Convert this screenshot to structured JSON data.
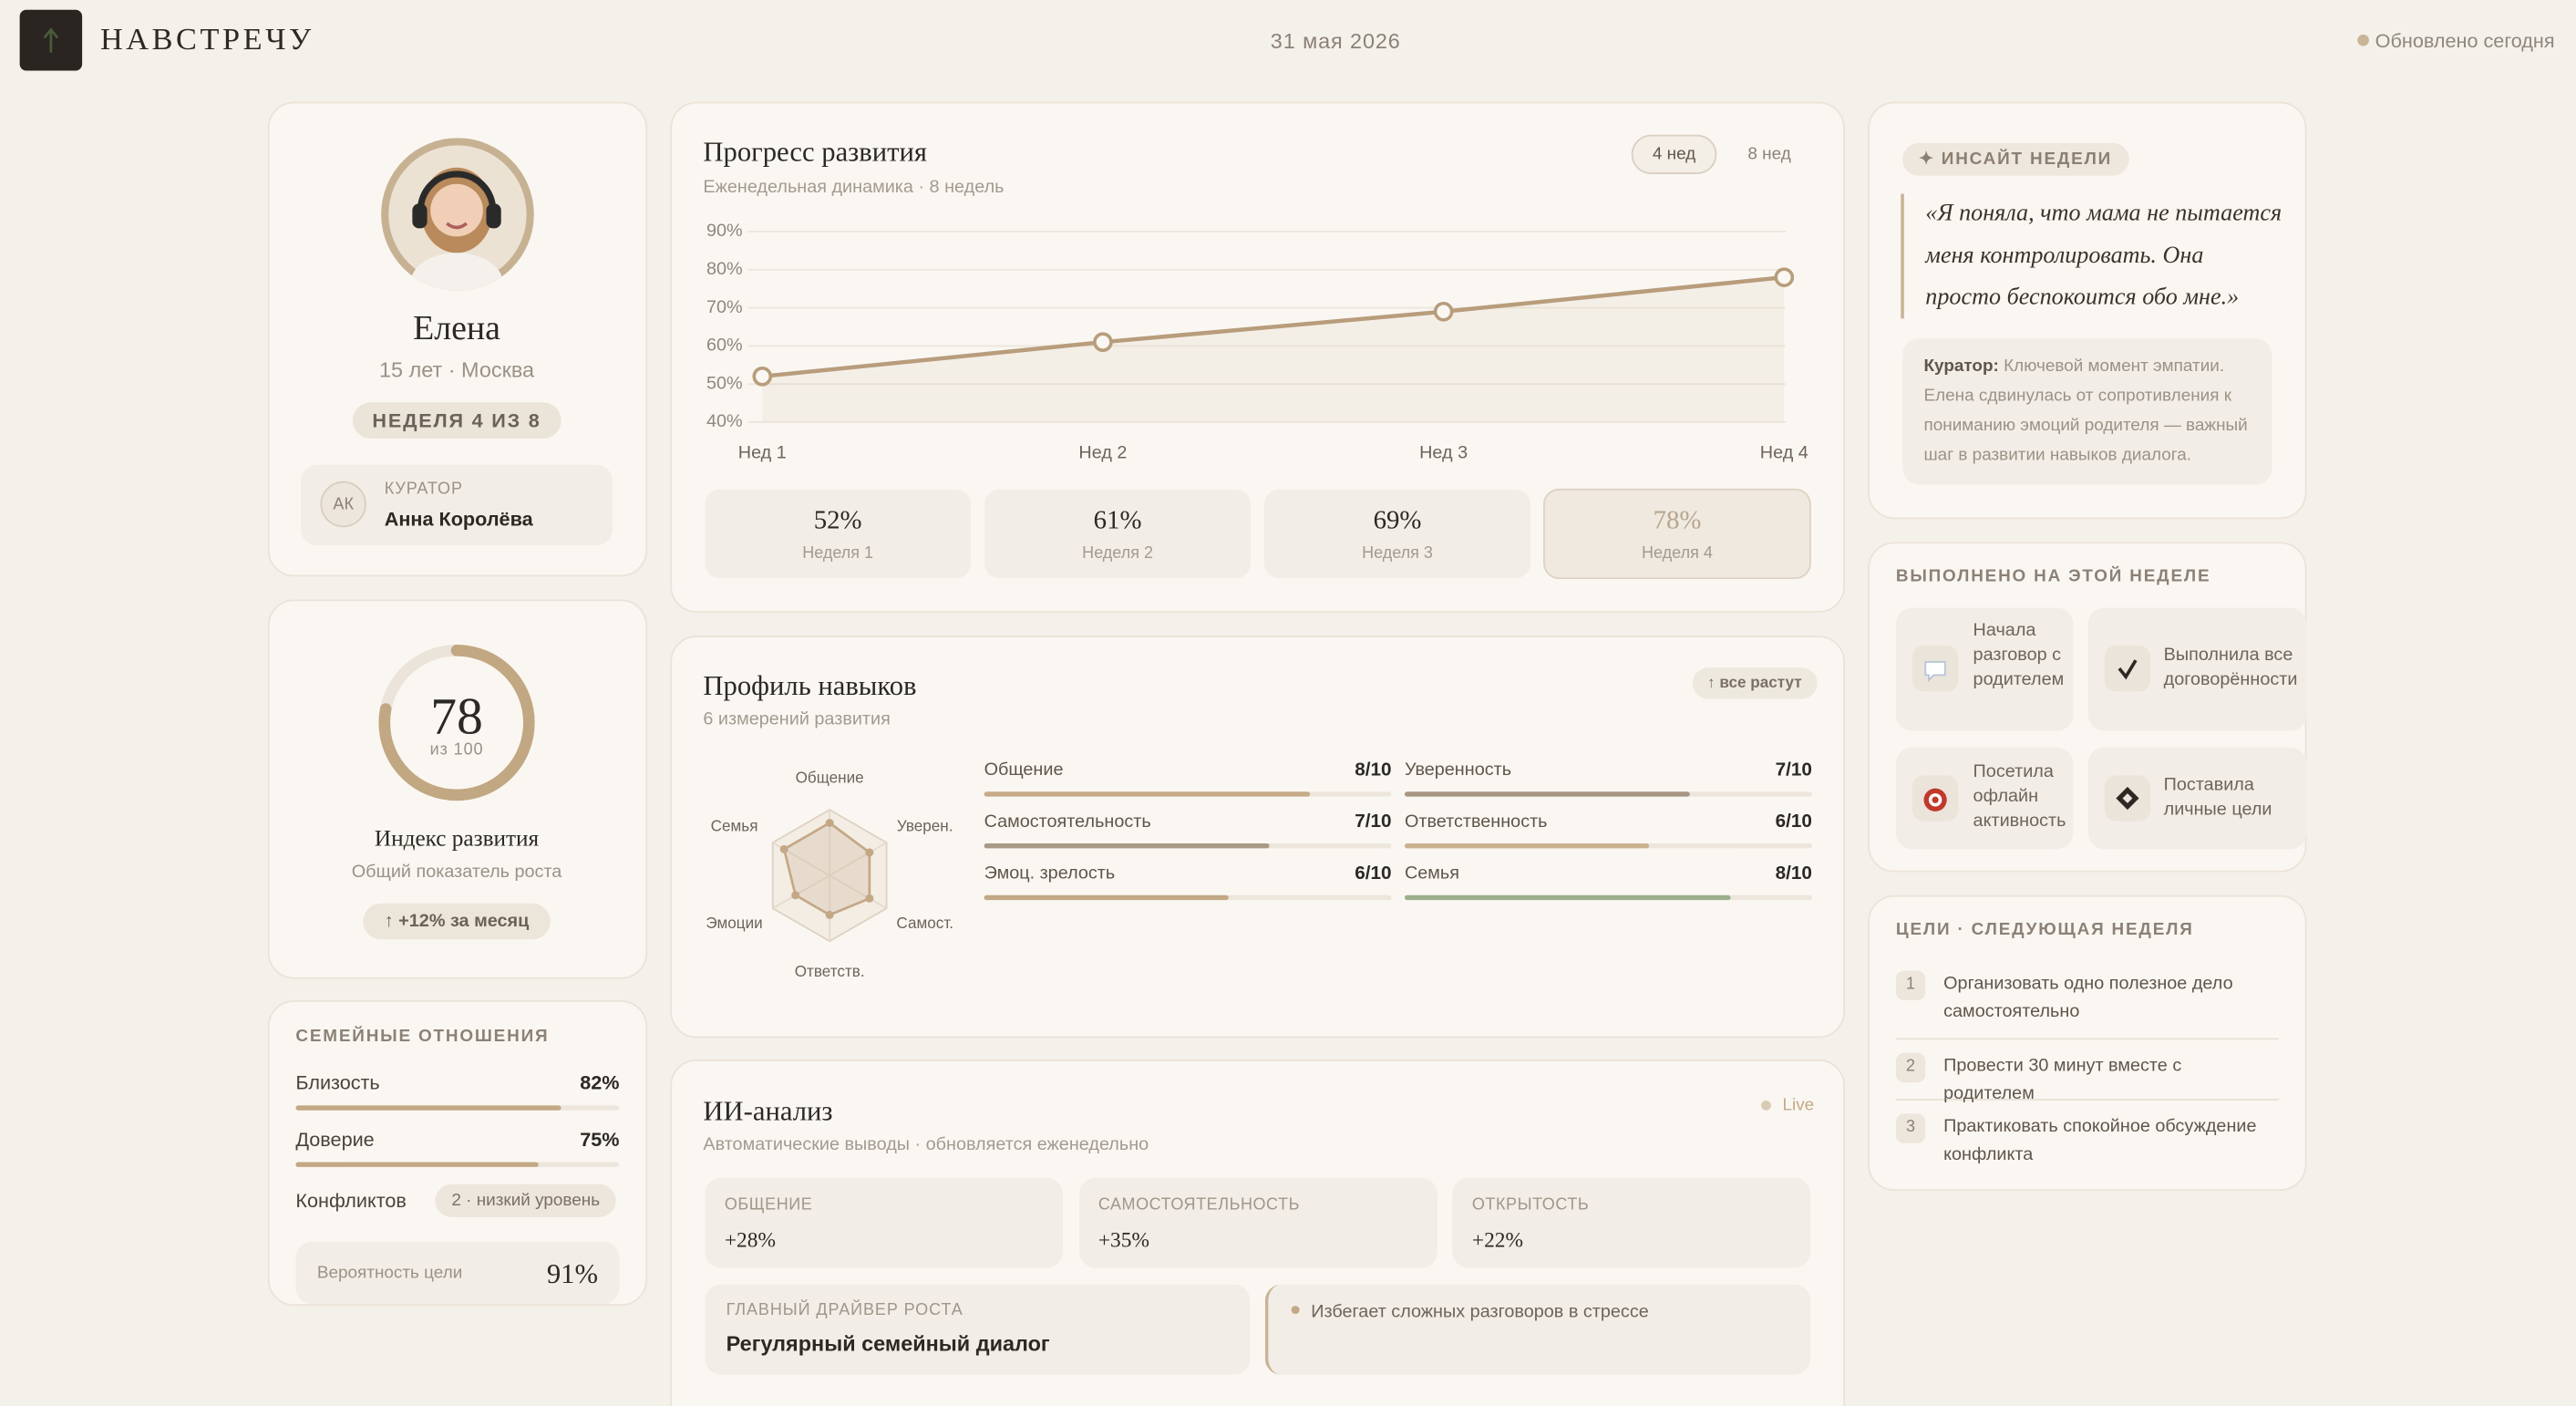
{
  "header": {
    "brand": "НАВСТРЕЧУ",
    "date": "31 мая 2026",
    "status": "Обновлено сегодня"
  },
  "profile": {
    "name": "Елена",
    "meta": "15 лет · Москва",
    "week": "НЕДЕЛЯ 4 ИЗ 8",
    "curator_label": "КУРАТОР",
    "curator_initials": "АК",
    "curator_name": "Анна Королёва"
  },
  "index": {
    "value": 78,
    "scale": {
      "value": 100,
      "label": "из 100"
    },
    "title": "Индекс развития",
    "subtitle": "Общий показатель роста",
    "change": "↑ +12% за месяц"
  },
  "family": {
    "title": "СЕМЕЙНЫЕ ОТНОШЕНИЯ",
    "xlim": [
      0,
      100
    ],
    "color": "#c4a886",
    "rows": [
      {
        "name": "Близость",
        "value": 82,
        "label": "82%"
      },
      {
        "name": "Доверие",
        "value": 75,
        "label": "75%"
      }
    ],
    "conflicts_label": "Конфликтов",
    "conflicts": "2 · низкий уровень",
    "goal_label": "Вероятность цели",
    "goal": "91%"
  },
  "progress": {
    "title": "Прогресс развития",
    "subtitle": "Еженедельная динамика · 8 недель",
    "toggles": [
      "4 нед",
      "8 нед"
    ],
    "card_labels": [
      "Неделя 1",
      "Неделя 2",
      "Неделя 3",
      "Неделя 4"
    ]
  },
  "chart_data": [
    {
      "type": "line",
      "categories": [
        "Нед 1",
        "Нед 2",
        "Нед 3",
        "Нед 4"
      ],
      "series": [
        {
          "color": "#b89d7c",
          "values": [
            52,
            61,
            69,
            78
          ],
          "value_labels": [
            "52%",
            "61%",
            "69%",
            "78%"
          ]
        }
      ],
      "ylim": [
        40,
        90
      ],
      "yticks": [
        {
          "value": 40,
          "label": "40%"
        },
        {
          "value": 50,
          "label": "50%"
        },
        {
          "value": 60,
          "label": "60%"
        },
        {
          "value": 70,
          "label": "70%"
        },
        {
          "value": 80,
          "label": "80%"
        },
        {
          "value": 90,
          "label": "90%"
        }
      ],
      "grid": true
    },
    {
      "type": "radar",
      "categories": [
        "Общение",
        "Уверен.",
        "Самост.",
        "Ответств.",
        "Эмоции",
        "Семья"
      ],
      "values": [
        8,
        7,
        7,
        6,
        6,
        8
      ],
      "ylim": [
        0,
        10
      ],
      "color": "#c4a886"
    }
  ],
  "skills": {
    "title": "Профиль навыков",
    "subtitle": "6 измерений развития",
    "badge": "↑ все растут",
    "xlim": [
      0,
      10
    ],
    "items": [
      {
        "name": "Общение",
        "value": 8,
        "label": "8/10",
        "color": "#c7ab88"
      },
      {
        "name": "Уверенность",
        "value": 7,
        "label": "7/10",
        "color": "#a89684"
      },
      {
        "name": "Самостоятельность",
        "value": 7,
        "label": "7/10",
        "color": "#a89a86"
      },
      {
        "name": "Ответственность",
        "value": 6,
        "label": "6/10",
        "color": "#cbb28e"
      },
      {
        "name": "Эмоц. зрелость",
        "value": 6,
        "label": "6/10",
        "color": "#c3a885"
      },
      {
        "name": "Семья",
        "value": 8,
        "label": "8/10",
        "color": "#9caf8d"
      }
    ]
  },
  "ai": {
    "title": "ИИ-анализ",
    "subtitle": "Автоматические выводы · обновляется еженедельно",
    "live": "Live",
    "metrics": [
      {
        "name": "ОБЩЕНИЕ",
        "value": "+28%"
      },
      {
        "name": "САМОСТОЯТЕЛЬНОСТЬ",
        "value": "+35%"
      },
      {
        "name": "ОТКРЫТОСТЬ",
        "value": "+22%"
      }
    ],
    "driver_label": "ГЛАВНЫЙ ДРАЙВЕР РОСТА",
    "driver": "Регулярный семейный диалог",
    "risk": "Избегает сложных разговоров в стрессе"
  },
  "insight": {
    "badge": "✦ ИНСАЙТ НЕДЕЛИ",
    "quote": "«Я поняла, что мама не пытается меня контролировать. Она просто беспокоится обо мне.»",
    "curator_label": "Куратор:",
    "curator_note": "Ключевой момент эмпатии. Елена сдвинулась от сопротивления к пониманию эмоций родителя — важный шаг в развитии навыков диалога."
  },
  "done": {
    "title": "ВЫПОЛНЕНО НА ЭТОЙ НЕДЕЛЕ",
    "items": [
      "Начала разговор с родителем",
      "Выполнила все договорённости",
      "Посетила офлайн активность",
      "Поставила личные цели"
    ]
  },
  "goals": {
    "title": "ЦЕЛИ · СЛЕДУЮЩАЯ НЕДЕЛЯ",
    "items": [
      {
        "n": 1,
        "text": "Организовать одно полезное дело самостоятельно"
      },
      {
        "n": 2,
        "text": "Провести 30 минут вместе с родителем"
      },
      {
        "n": 3,
        "text": "Практиковать спокойное обсуждение конфликта"
      }
    ]
  }
}
